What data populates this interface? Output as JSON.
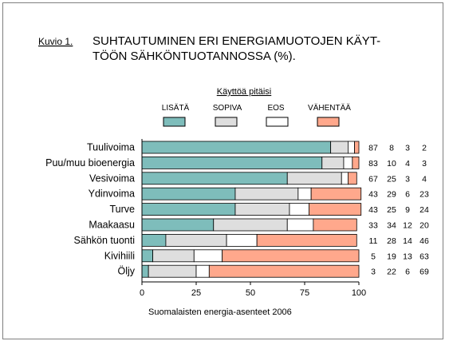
{
  "figure": {
    "caption_label": "Kuvio 1.",
    "title_line1": "SUHTAUTUMINEN ERI ENERGIAMUOTOJEN KÄYT-",
    "title_line2": "TÖÖN SÄHKÖNTUOTANNOSSA (%).",
    "source": "Suomalaisten energia-asenteet 2006"
  },
  "chart_data": {
    "type": "bar",
    "orientation": "horizontal",
    "stacked": true,
    "title": "SUHTAUTUMINEN ERI ENERGIAMUOTOJEN KÄYTTÖÖN SÄHKÖNTUOTANNOSSA (%).",
    "legend_title": "Käyttöä pitäisi",
    "categories": [
      "Tuulivoima",
      "Puu/muu bioenergia",
      "Vesivoima",
      "Ydinvoima",
      "Turve",
      "Maakaasu",
      "Sähkön tuonti",
      "Kivihiili",
      "Öljy"
    ],
    "series": [
      {
        "name": "LISÄTÄ",
        "color": "#7ebdbb",
        "values": [
          87,
          83,
          67,
          43,
          43,
          33,
          11,
          5,
          3
        ]
      },
      {
        "name": "SOPIVA",
        "color": "#dedede",
        "values": [
          8,
          10,
          25,
          29,
          25,
          34,
          28,
          19,
          22
        ]
      },
      {
        "name": "EOS",
        "color": "#ffffff",
        "values": [
          3,
          4,
          3,
          6,
          9,
          12,
          14,
          13,
          6
        ]
      },
      {
        "name": "VÄHENTÄÄ",
        "color": "#ffa88c",
        "values": [
          2,
          3,
          4,
          23,
          24,
          20,
          46,
          63,
          69
        ]
      }
    ],
    "xlim": [
      0,
      100
    ],
    "xticks": [
      "0",
      "25",
      "50",
      "75",
      "100"
    ],
    "legend_position": "top",
    "grid": false
  }
}
